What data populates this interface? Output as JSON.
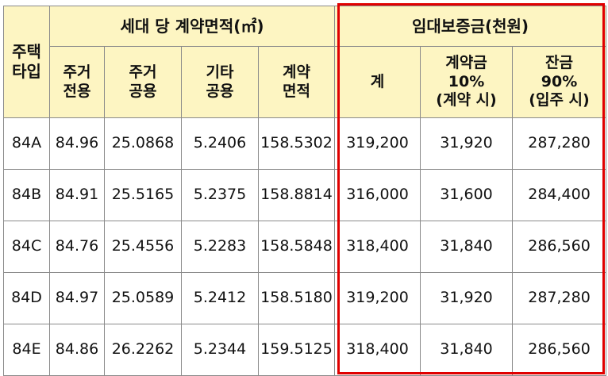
{
  "headers": {
    "type": "주택\n타입",
    "area_group": "세대 당 계약면적(㎡)",
    "area_cols": [
      "주거\n전용",
      "주거\n공용",
      "기타\n공용",
      "계약\n면적"
    ],
    "deposit_group": "임대보증금(천원)",
    "deposit_cols": [
      "계",
      "계약금\n10%\n(계약 시)",
      "잔금\n90%\n(입주 시)"
    ]
  },
  "rows": [
    {
      "type": "84A",
      "exclusive": "84.96",
      "common": "25.0868",
      "other": "5.2406",
      "contract": "158.5302",
      "total": "319,200",
      "down": "31,920",
      "balance": "287,280"
    },
    {
      "type": "84B",
      "exclusive": "84.91",
      "common": "25.5165",
      "other": "5.2375",
      "contract": "158.8814",
      "total": "316,000",
      "down": "31,600",
      "balance": "284,400"
    },
    {
      "type": "84C",
      "exclusive": "84.76",
      "common": "25.4556",
      "other": "5.2283",
      "contract": "158.5848",
      "total": "318,400",
      "down": "31,840",
      "balance": "286,560"
    },
    {
      "type": "84D",
      "exclusive": "84.97",
      "common": "25.0589",
      "other": "5.2412",
      "contract": "158.5180",
      "total": "319,200",
      "down": "31,920",
      "balance": "287,280"
    },
    {
      "type": "84E",
      "exclusive": "84.86",
      "common": "26.2262",
      "other": "5.2344",
      "contract": "159.5125",
      "total": "318,400",
      "down": "31,840",
      "balance": "286,560"
    }
  ],
  "colors": {
    "header_bg": "#fdf5c2",
    "highlight_border": "#e00000",
    "grid_line": "#8a8a8a"
  }
}
